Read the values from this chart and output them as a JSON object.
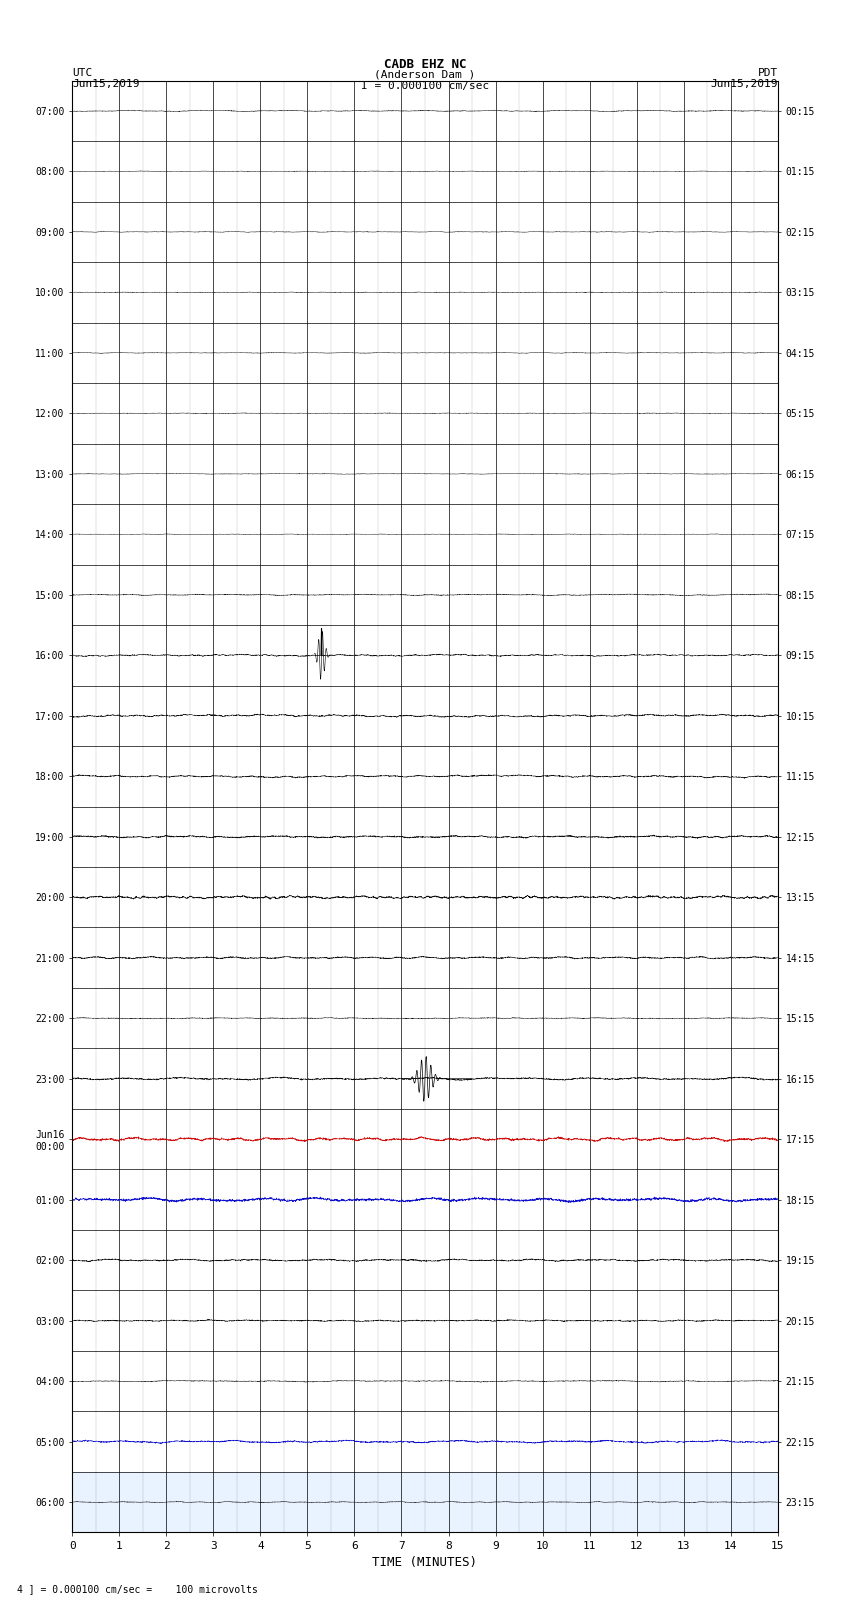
{
  "title_line1": "CADB EHZ NC",
  "title_line2": "(Anderson Dam )",
  "title_scale": "I = 0.000100 cm/sec",
  "left_header": "UTC\nJun15,2019",
  "right_header": "PDT\nJun15,2019",
  "bottom_label": "TIME (MINUTES)",
  "bottom_note": "4 ] = 0.000100 cm/sec =    100 microvolts",
  "utc_labels": [
    "07:00",
    "08:00",
    "09:00",
    "10:00",
    "11:00",
    "12:00",
    "13:00",
    "14:00",
    "15:00",
    "16:00",
    "17:00",
    "18:00",
    "19:00",
    "20:00",
    "21:00",
    "22:00",
    "23:00",
    "Jun16\n00:00",
    "01:00",
    "02:00",
    "03:00",
    "04:00",
    "05:00",
    "06:00"
  ],
  "pdt_labels": [
    "00:15",
    "01:15",
    "02:15",
    "03:15",
    "04:15",
    "05:15",
    "06:15",
    "07:15",
    "08:15",
    "09:15",
    "10:15",
    "11:15",
    "12:15",
    "13:15",
    "14:15",
    "15:15",
    "16:15",
    "17:15",
    "18:15",
    "19:15",
    "20:15",
    "21:15",
    "22:15",
    "23:15"
  ],
  "n_rows": 24,
  "n_minutes": 15,
  "bg_color": "#ffffff",
  "grid_color": "#000000",
  "row_colors": [
    "black",
    "black",
    "black",
    "black",
    "black",
    "black",
    "black",
    "black",
    "black",
    "black",
    "black",
    "black",
    "black",
    "black",
    "black",
    "black",
    "black",
    "red",
    "blue",
    "black",
    "black",
    "black",
    "blue",
    "black"
  ],
  "row_amplitudes": [
    0.015,
    0.01,
    0.01,
    0.01,
    0.01,
    0.01,
    0.01,
    0.01,
    0.02,
    0.025,
    0.035,
    0.04,
    0.035,
    0.04,
    0.03,
    0.015,
    0.04,
    0.05,
    0.06,
    0.03,
    0.025,
    0.02,
    0.04,
    0.015
  ],
  "event_row_9_time": 5.3,
  "event_row_16_time": 7.5,
  "blue_bar_row": 23
}
